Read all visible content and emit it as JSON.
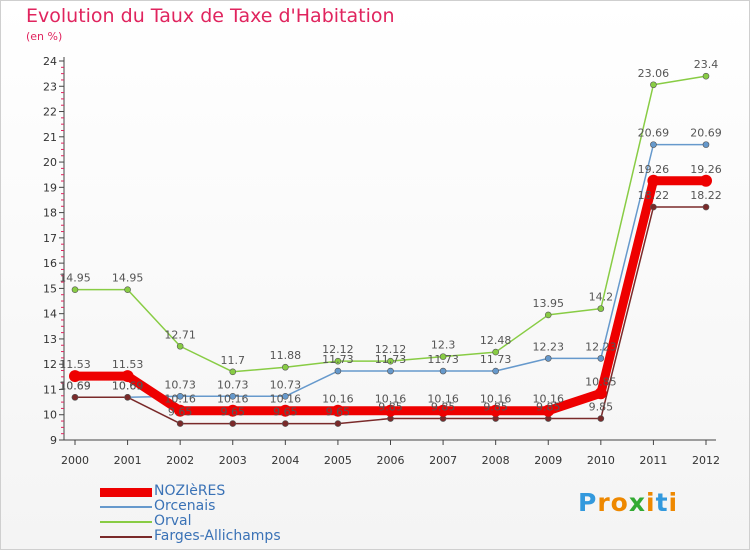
{
  "chart_data": {
    "type": "line",
    "title": "Evolution du Taux de Taxe d'Habitation",
    "subtitle": "(en %)",
    "categories": [
      "2000",
      "2001",
      "2002",
      "2003",
      "2004",
      "2005",
      "2006",
      "2007",
      "2008",
      "2009",
      "2010",
      "2011",
      "2012"
    ],
    "ylim": [
      9,
      24
    ],
    "yticks": [
      9,
      10,
      11,
      12,
      13,
      14,
      15,
      16,
      17,
      18,
      19,
      20,
      21,
      22,
      23,
      24
    ],
    "grid": false,
    "legend_position": "bottom-left",
    "series": [
      {
        "name": "NOZIèRES",
        "color": "#ee0000",
        "values": [
          11.53,
          11.53,
          10.16,
          10.16,
          10.16,
          10.16,
          10.16,
          10.16,
          10.16,
          10.16,
          10.85,
          19.26,
          19.26
        ],
        "labels": [
          "11.53",
          "11.53",
          "10.16",
          "10.16",
          "10.16",
          "10.16",
          "10.16",
          "10.16",
          "10.16",
          "10.16",
          "10.85",
          "19.26",
          "19.26"
        ]
      },
      {
        "name": "Orcenais",
        "color": "#6699cc",
        "values": [
          10.69,
          10.69,
          10.73,
          10.73,
          10.73,
          11.73,
          11.73,
          11.73,
          11.73,
          12.23,
          12.23,
          20.69,
          20.69
        ],
        "labels": [
          "10.69",
          "10.69",
          "10.73",
          "10.73",
          "10.73",
          "11.73",
          "11.73",
          "11.73",
          "11.73",
          "12.23",
          "12.23",
          "20.69",
          "20.69"
        ]
      },
      {
        "name": "Orval",
        "color": "#88cc44",
        "values": [
          14.95,
          14.95,
          12.71,
          11.7,
          11.88,
          12.12,
          12.12,
          12.3,
          12.48,
          13.95,
          14.2,
          23.06,
          23.4
        ],
        "labels": [
          "14.95",
          "14.95",
          "12.71",
          "11.7",
          "11.88",
          "12.12",
          "12.12",
          "12.3",
          "12.48",
          "13.95",
          "14.2",
          "23.06",
          "23.4"
        ]
      },
      {
        "name": "Farges-Allichamps",
        "color": "#7a2a2a",
        "values": [
          10.69,
          10.69,
          9.65,
          9.65,
          9.65,
          9.65,
          9.85,
          9.85,
          9.85,
          9.85,
          9.85,
          18.22,
          18.22
        ],
        "labels": [
          "10.69",
          "10.69",
          "9.65",
          "9.65",
          "9.65",
          "9.65",
          "9.85",
          "9.85",
          "9.85",
          "9.85",
          "9.85",
          "18.22",
          "18.22"
        ]
      }
    ]
  },
  "brand": {
    "letters": [
      "P",
      "r",
      "o",
      "x",
      "i",
      "t",
      "i"
    ],
    "colors": [
      "#3399dd",
      "#ee8800",
      "#ee8800",
      "#33aa33",
      "#ee8800",
      "#3399dd",
      "#ee8800"
    ]
  }
}
